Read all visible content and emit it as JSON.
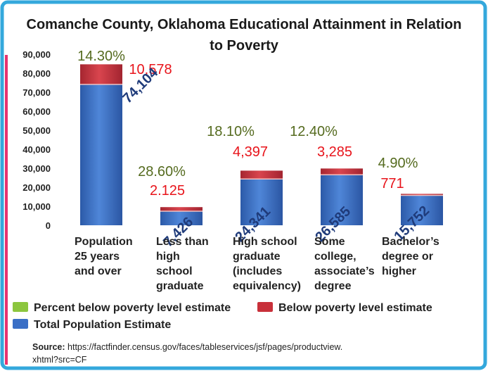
{
  "chart_data": {
    "type": "bar",
    "stacked": true,
    "title": "Comanche County, Oklahoma Educational Attainment in Relation to Poverty",
    "categories": [
      [
        "Population",
        "25 years",
        "and over"
      ],
      [
        "Less than",
        "high",
        "school",
        "graduate"
      ],
      [
        "High school",
        "graduate",
        "(includes",
        "equivalency)"
      ],
      [
        "Some",
        "college,",
        "associate’s",
        "degree"
      ],
      [
        "Bachelor’s",
        "degree or",
        "higher"
      ]
    ],
    "series": [
      {
        "name": "Total Population Estimate",
        "values": [
          74104,
          7426,
          24341,
          26585,
          15752
        ],
        "color": "#3a6fc6"
      },
      {
        "name": "Below poverty level estimate",
        "values": [
          10578,
          2125,
          4397,
          3285,
          771
        ],
        "color": "#c8303a"
      },
      {
        "name": "Percent below poverty level estimate",
        "values": [
          14.3,
          28.6,
          18.1,
          12.4,
          4.9
        ],
        "color": "#8cc63e"
      }
    ],
    "data_labels": {
      "total": [
        "74,104",
        "7,426",
        "24,341",
        "26,585",
        "15,752"
      ],
      "below": [
        "10,578",
        "2.125",
        "4,397",
        "3,285",
        "771"
      ],
      "percent": [
        "14.30%",
        "28.60%",
        "18.10%",
        "12.40%",
        "4.90%"
      ]
    },
    "yticks": [
      "90,000",
      "80,000",
      "70,000",
      "60,000",
      "50,000",
      "40,000",
      "30,000",
      "20,000",
      "10,000",
      "0"
    ],
    "ylim": [
      0,
      90000
    ],
    "grid": false,
    "legend": "bottom",
    "label_colors": {
      "total": "#1f3b7a",
      "below": "#e8141b",
      "percent": "#556b1f"
    },
    "frame_color": "#34a8dc",
    "accent_color": "#e8336e"
  },
  "legend": {
    "percent": "Percent below poverty level estimate",
    "below": "Below poverty level estimate",
    "total": "Total Population Estimate"
  },
  "source": {
    "label": "Source:",
    "text": "https://factfinder.census.gov/faces/tableservices/jsf/pages/productview.",
    "text2": "xhtml?src=CF"
  }
}
